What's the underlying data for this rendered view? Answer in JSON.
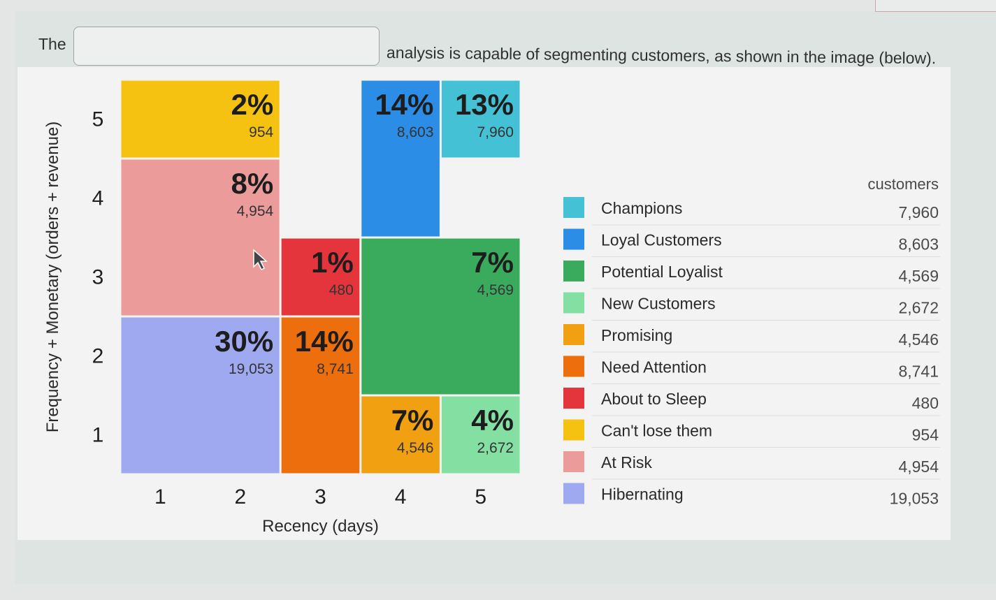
{
  "question": {
    "prefix": "The",
    "input_value": "",
    "suffix": "analysis is capable of segmenting customers, as shown in the image (below)."
  },
  "chart_data": {
    "type": "heatmap",
    "xlabel": "Recency (days)",
    "ylabel": "Frequency + Monetary (orders + revenue)",
    "x_ticks": [
      "1",
      "2",
      "3",
      "4",
      "5"
    ],
    "y_ticks": [
      "5",
      "4",
      "3",
      "2",
      "1"
    ],
    "legend_header": "customers",
    "segments": [
      {
        "name": "Champions",
        "color": "#45c1d5",
        "pct": "13%",
        "customers": "7,960",
        "x_range": [
          4,
          5
        ],
        "y_range": [
          4,
          5
        ]
      },
      {
        "name": "Loyal Customers",
        "color": "#2b8de6",
        "pct": "14%",
        "customers": "8,603",
        "x_range": [
          3,
          4
        ],
        "y_range": [
          3,
          5
        ]
      },
      {
        "name": "Potential Loyalist",
        "color": "#3aab5c",
        "pct": "7%",
        "customers": "4,569",
        "x_range": [
          3,
          5
        ],
        "y_range": [
          1,
          3
        ]
      },
      {
        "name": "New Customers",
        "color": "#84dfa2",
        "pct": "4%",
        "customers": "2,672",
        "x_range": [
          4,
          5
        ],
        "y_range": [
          0,
          1
        ]
      },
      {
        "name": "Promising",
        "color": "#f0a010",
        "pct": "7%",
        "customers": "4,546",
        "x_range": [
          3,
          4
        ],
        "y_range": [
          0,
          1
        ]
      },
      {
        "name": "Need Attention",
        "color": "#ec6e0d",
        "pct": "14%",
        "customers": "8,741",
        "x_range": [
          2,
          3
        ],
        "y_range": [
          0,
          2
        ]
      },
      {
        "name": "About to Sleep",
        "color": "#e3353b",
        "pct": "1%",
        "customers": "480",
        "x_range": [
          2,
          3
        ],
        "y_range": [
          2,
          3
        ]
      },
      {
        "name": "Can't lose them",
        "color": "#f5c211",
        "pct": "2%",
        "customers": "954",
        "x_range": [
          0,
          2
        ],
        "y_range": [
          4,
          5
        ]
      },
      {
        "name": "At Risk",
        "color": "#ec9b9b",
        "pct": "8%",
        "customers": "4,954",
        "x_range": [
          0,
          2
        ],
        "y_range": [
          2,
          4
        ]
      },
      {
        "name": "Hibernating",
        "color": "#9ea9ef",
        "pct": "30%",
        "customers": "19,053",
        "x_range": [
          0,
          2
        ],
        "y_range": [
          0,
          2
        ]
      }
    ]
  }
}
